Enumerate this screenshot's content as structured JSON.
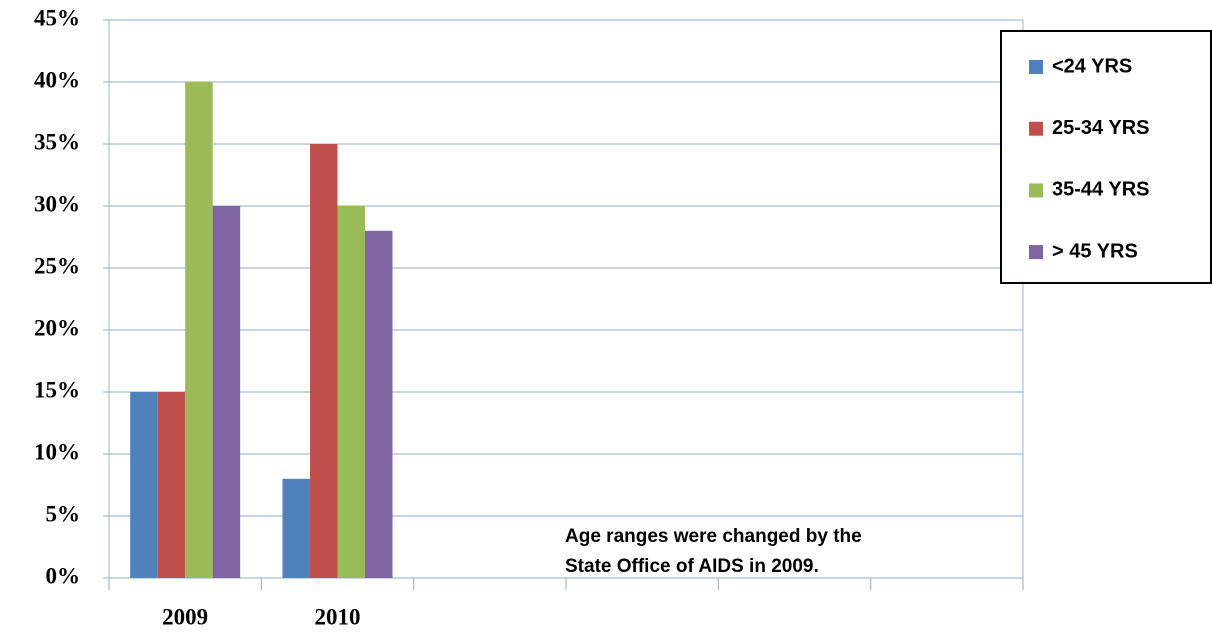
{
  "chart_data": {
    "type": "bar",
    "categories": [
      "2009",
      "2010",
      null,
      null,
      null,
      null
    ],
    "series": [
      {
        "name": "<24 YRS",
        "color": "#4f81bd",
        "values": [
          15,
          8,
          null,
          null,
          null,
          null
        ]
      },
      {
        "name": "25-34 YRS",
        "color": "#c0504d",
        "values": [
          15,
          35,
          null,
          null,
          null,
          null
        ]
      },
      {
        "name": "35-44 YRS",
        "color": "#9bbb59",
        "values": [
          40,
          30,
          null,
          null,
          null,
          null
        ]
      },
      {
        "name": "> 45 YRS",
        "color": "#8064a2",
        "values": [
          30,
          28,
          null,
          null,
          null,
          null
        ]
      }
    ],
    "ylim": [
      0,
      45
    ],
    "yticks": [
      {
        "value": 0,
        "label": "0%"
      },
      {
        "value": 5,
        "label": "5%"
      },
      {
        "value": 10,
        "label": "10%"
      },
      {
        "value": 15,
        "label": "15%"
      },
      {
        "value": 20,
        "label": "20%"
      },
      {
        "value": 25,
        "label": "25%"
      },
      {
        "value": 30,
        "label": "30%"
      },
      {
        "value": 35,
        "label": "35%"
      },
      {
        "value": 40,
        "label": "40%"
      },
      {
        "value": 45,
        "label": "45%"
      }
    ],
    "grid": true,
    "legend": "right",
    "annotations": [
      "Age ranges were changed by the",
      "State Office of AIDS in 2009."
    ]
  }
}
